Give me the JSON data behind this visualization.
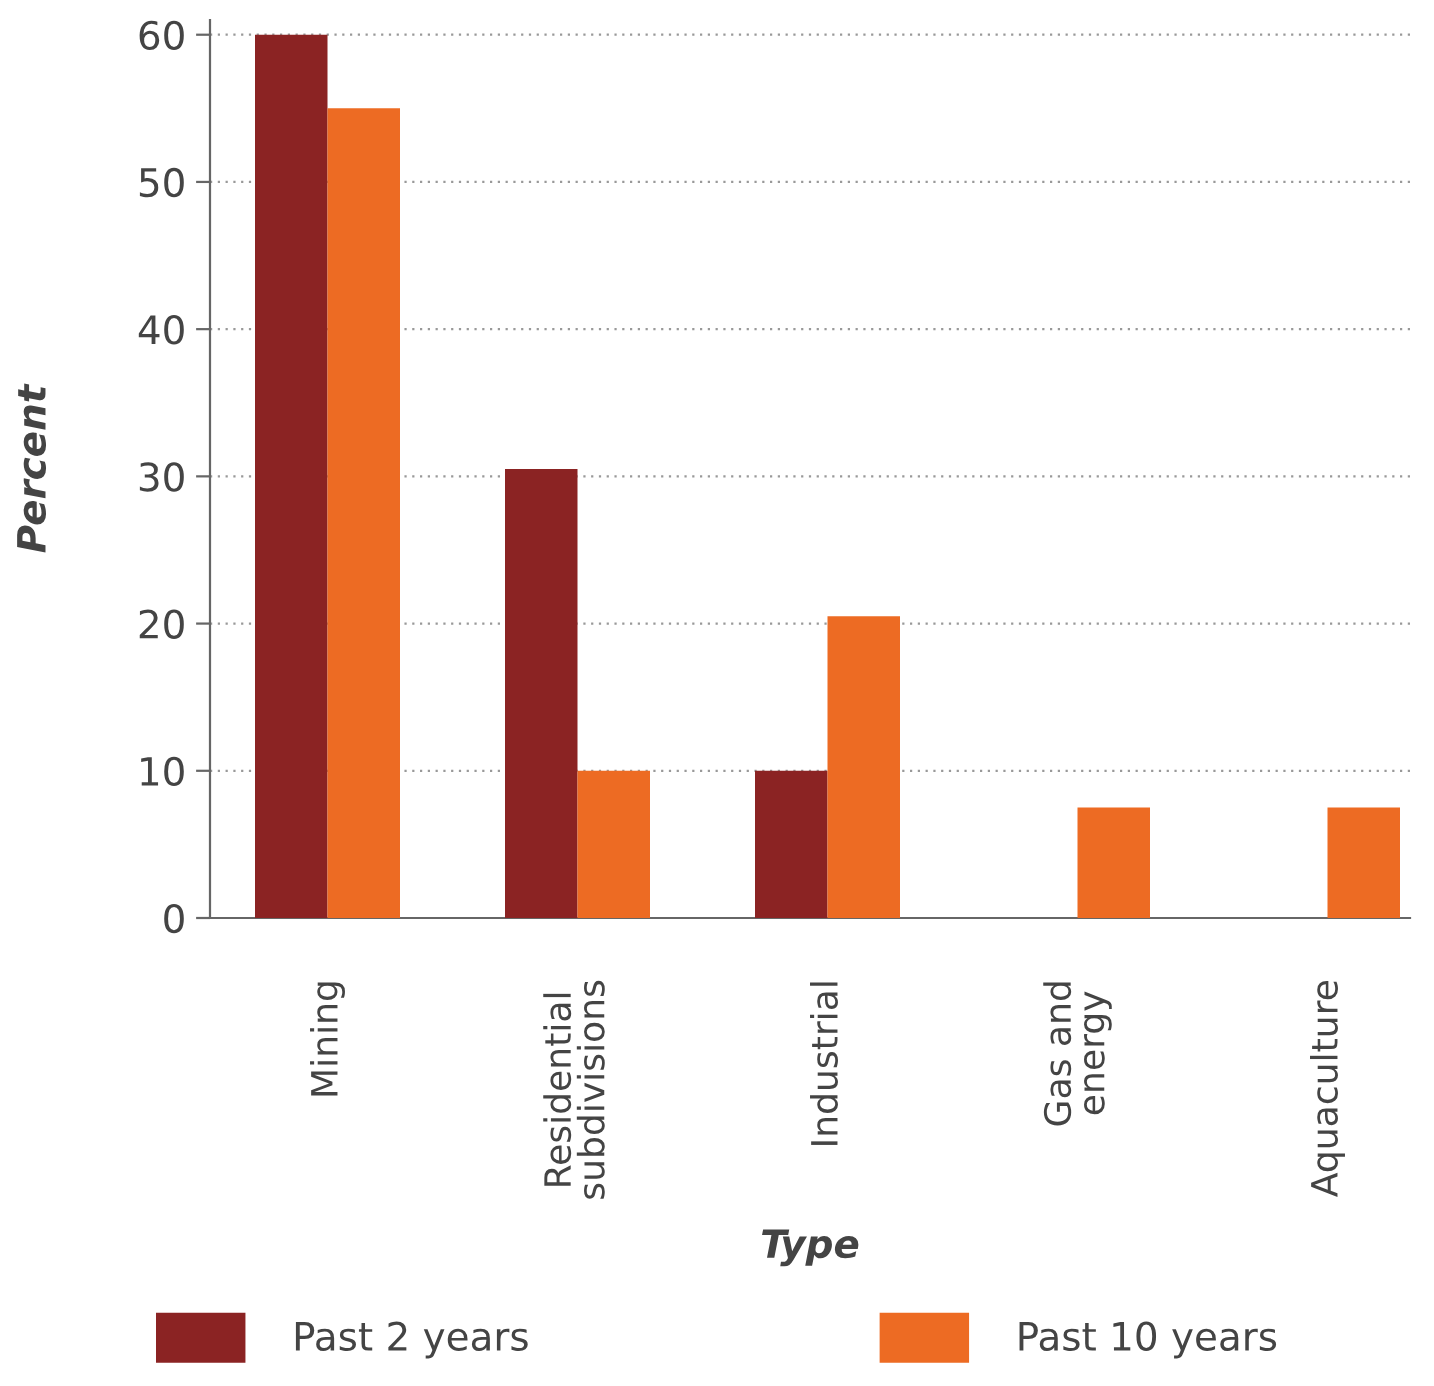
{
  "chart_data": {
    "type": "bar",
    "xlabel": "Type",
    "ylabel": "Percent",
    "categories": [
      "Mining",
      "Residential\nsubdivisions",
      "Industrial",
      "Gas and\nenergy",
      "Aquaculture"
    ],
    "series": [
      {
        "name": "Past 2 years",
        "color": "#8b2323",
        "values": [
          60,
          30.5,
          10,
          null,
          null
        ]
      },
      {
        "name": "Past 10 years",
        "color": "#ed6b23",
        "values": [
          55,
          10,
          20.5,
          7.5,
          7.5
        ]
      }
    ],
    "ylim": [
      0,
      61
    ],
    "yticks": [
      0,
      10,
      20,
      30,
      40,
      50,
      60
    ],
    "grid": "y",
    "legend": "bottom"
  }
}
